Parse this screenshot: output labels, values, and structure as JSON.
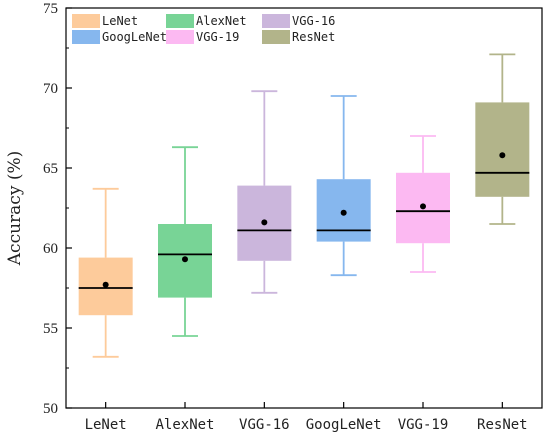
{
  "chart_data": {
    "type": "box",
    "ylabel": "Accuracy (%)",
    "ylim": [
      50,
      75
    ],
    "yticks": [
      "50",
      "55",
      "60",
      "65",
      "70",
      "75"
    ],
    "categories": [
      "LeNet",
      "AlexNet",
      "VGG-16",
      "GoogLeNet",
      "VGG-19",
      "ResNet"
    ],
    "series": [
      {
        "name": "LeNet",
        "min": 53.2,
        "q1": 55.8,
        "median": 57.5,
        "q3": 59.4,
        "max": 63.7,
        "mean": 57.7,
        "color": "#fdcb9b"
      },
      {
        "name": "AlexNet",
        "min": 54.5,
        "q1": 56.9,
        "median": 59.6,
        "q3": 61.5,
        "max": 66.3,
        "mean": 59.3,
        "color": "#78d496"
      },
      {
        "name": "VGG-16",
        "min": 57.2,
        "q1": 59.2,
        "median": 61.1,
        "q3": 63.9,
        "max": 69.8,
        "mean": 61.6,
        "color": "#cbb6dc"
      },
      {
        "name": "GoogLeNet",
        "min": 58.3,
        "q1": 60.4,
        "median": 61.1,
        "q3": 64.3,
        "max": 69.5,
        "mean": 62.2,
        "color": "#86b7ee"
      },
      {
        "name": "VGG-19",
        "min": 58.5,
        "q1": 60.3,
        "median": 62.3,
        "q3": 64.7,
        "max": 67.0,
        "mean": 62.6,
        "color": "#fcb9f2"
      },
      {
        "name": "ResNet",
        "min": 61.5,
        "q1": 63.2,
        "median": 64.7,
        "q3": 69.1,
        "max": 72.1,
        "mean": 65.8,
        "color": "#b2b48a"
      }
    ],
    "legend_position": "top-left",
    "grid": false
  }
}
